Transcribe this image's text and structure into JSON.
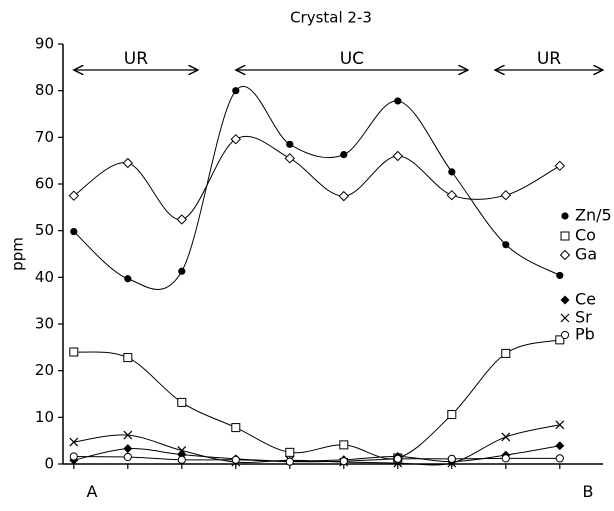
{
  "chart_data": {
    "type": "line",
    "title": "Crystal 2-3",
    "xlabel": "",
    "ylabel": "ppm",
    "ylim": [
      0,
      90
    ],
    "yticks": [
      0,
      10,
      20,
      30,
      40,
      50,
      60,
      70,
      80,
      90
    ],
    "x": [
      1,
      2,
      3,
      4,
      5,
      6,
      7,
      8,
      9,
      10
    ],
    "xlim": [
      0.8,
      10.8
    ],
    "endpoints": {
      "start": "A",
      "end": "B"
    },
    "regions": [
      {
        "label": "UR",
        "from": 1,
        "to": 3.3
      },
      {
        "label": "UC",
        "from": 4,
        "to": 8.3
      },
      {
        "label": "UR",
        "from": 8.8,
        "to": 10.8
      }
    ],
    "legend_position": "right",
    "series": [
      {
        "name": "Zn/5",
        "marker": "filled-circle",
        "values": [
          49.8,
          39.7,
          41.3,
          80,
          68.5,
          66.3,
          77.8,
          62.6,
          47,
          40.4
        ]
      },
      {
        "name": "Co",
        "marker": "open-square",
        "values": [
          24,
          22.8,
          13.2,
          7.8,
          2.5,
          4.1,
          1.3,
          10.6,
          23.7,
          26.6
        ]
      },
      {
        "name": "Ga",
        "marker": "open-diamond",
        "values": [
          57.5,
          64.5,
          52.4,
          69.6,
          65.5,
          57.4,
          66,
          57.6,
          57.6,
          63.9
        ]
      },
      {
        "name": "Ce",
        "marker": "filled-diamond",
        "values": [
          0.8,
          3.3,
          2,
          1.1,
          0.6,
          0.9,
          1.6,
          0.5,
          1.9,
          3.9
        ]
      },
      {
        "name": "Sr",
        "marker": "cross",
        "values": [
          4.7,
          6.2,
          2.9,
          0.4,
          0.8,
          0.4,
          0.2,
          0.2,
          5.8,
          8.4
        ]
      },
      {
        "name": "Pb",
        "marker": "open-circle",
        "values": [
          1.6,
          1.5,
          0.9,
          0.9,
          0.5,
          0.6,
          1.1,
          1.1,
          1.2,
          1.2
        ]
      }
    ],
    "legend_order": [
      "Zn/5",
      "Co",
      "Ga",
      "Ce",
      "Sr",
      "Pb"
    ]
  }
}
